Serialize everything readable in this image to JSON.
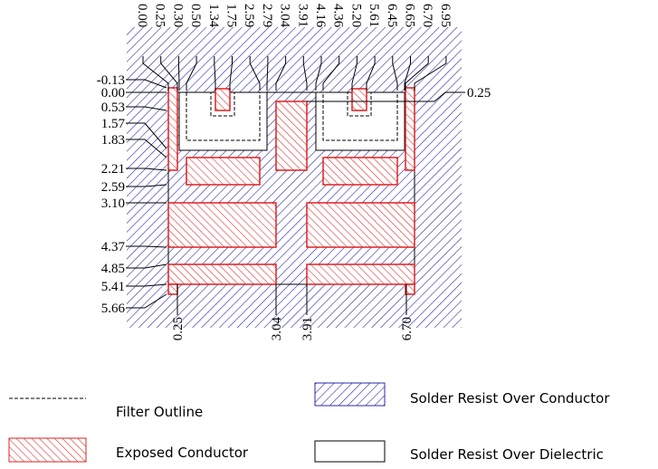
{
  "top_labels": [
    "0.00",
    "0.25",
    "0.30",
    "0.50",
    "1.34",
    "1.75",
    "2.59",
    "2.79",
    "3.04",
    "3.91",
    "4.16",
    "4.36",
    "5.20",
    "5.61",
    "6.45",
    "6.65",
    "6.70",
    "6.95"
  ],
  "left_labels": [
    "-0.13",
    "0.00",
    "0.53",
    "1.57",
    "1.83",
    "2.21",
    "2.59",
    "3.10",
    "4.37",
    "4.85",
    "5.41",
    "5.66"
  ],
  "right_labels": [
    "0.25"
  ],
  "bottom_labels": [
    "0.25",
    "3.04",
    "3.91",
    "6.70"
  ],
  "legend": {
    "filter_outline": "Filter Outline",
    "solder_resist_conductor": "Solder Resist Over Conductor",
    "exposed_conductor": "Exposed Conductor",
    "solder_resist_dielectric": "Solder Resist Over Dielectric"
  }
}
